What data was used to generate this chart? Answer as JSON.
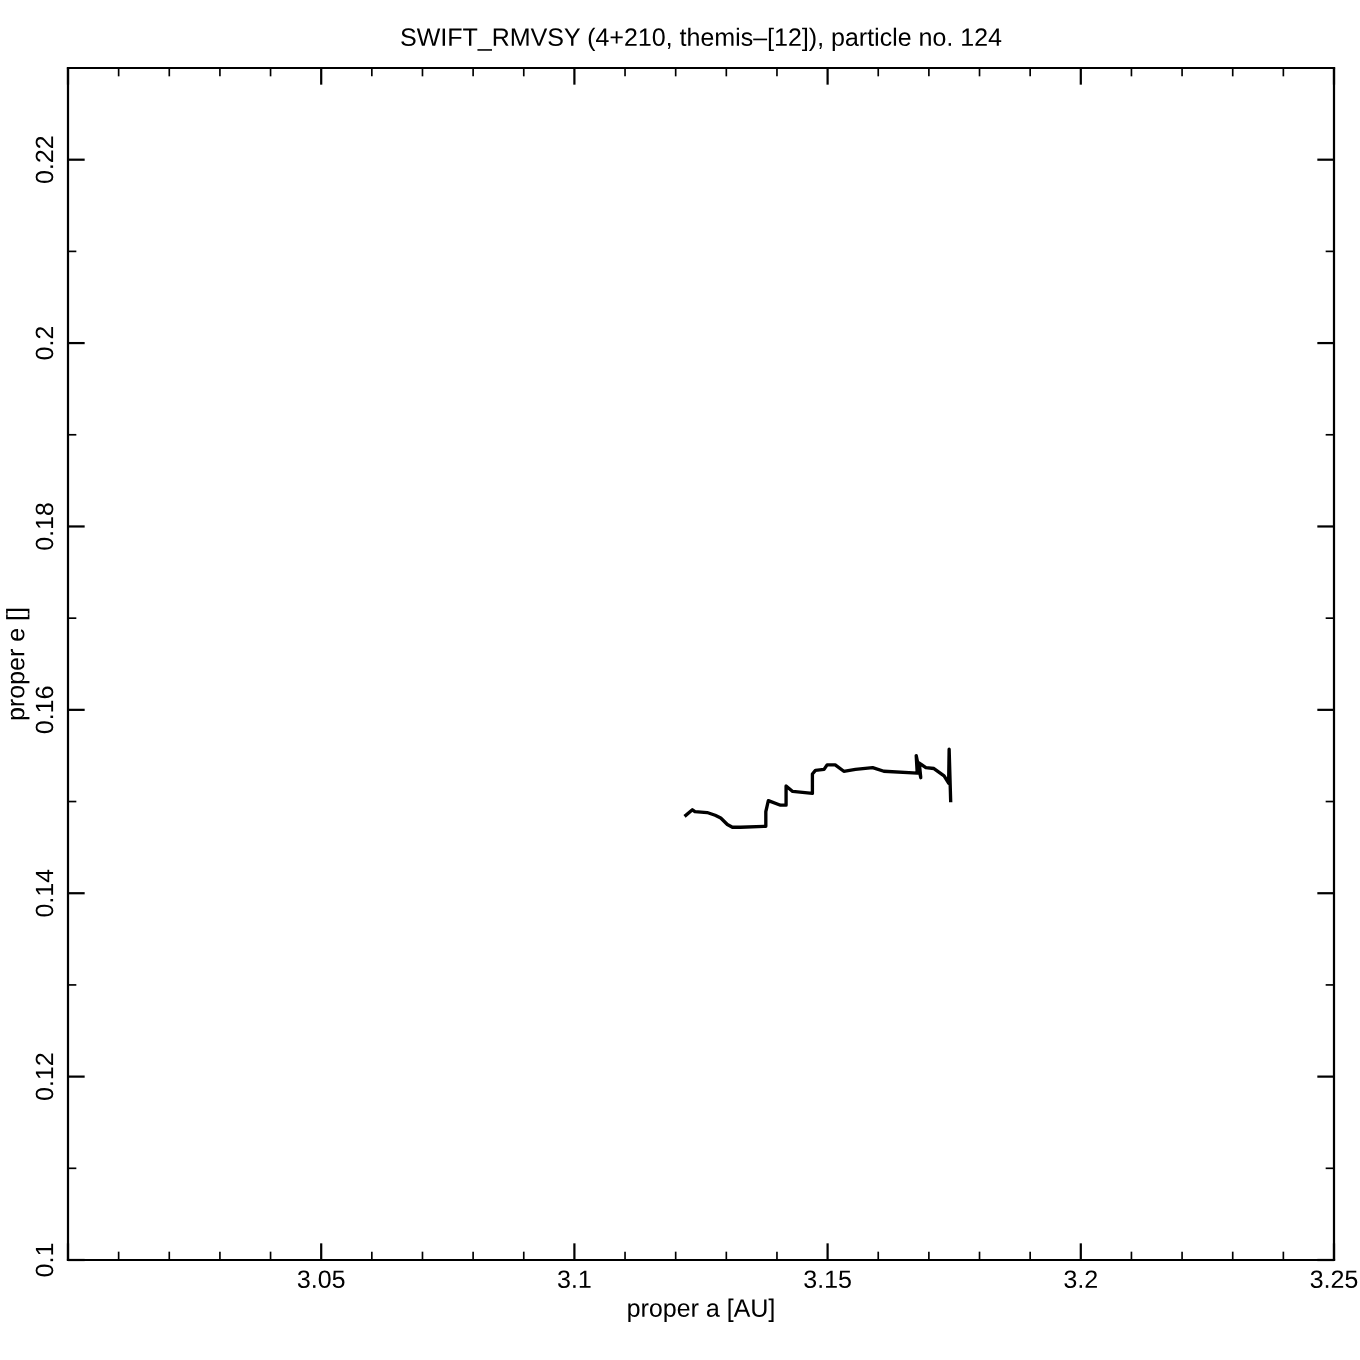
{
  "chart_data": {
    "type": "line",
    "title": "SWIFT_RMVSY (4+210, themis–[12]), particle no. 124",
    "xlabel": "proper a [AU]",
    "ylabel": "proper e []",
    "series": [
      {
        "color": "#000000",
        "x": [
          3.122,
          3.1233,
          3.1238,
          3.1262,
          3.1278,
          3.1289,
          3.1302,
          3.1312,
          3.1328,
          3.1378,
          3.1378,
          3.1383,
          3.1407,
          3.1418,
          3.1418,
          3.1431,
          3.147,
          3.147,
          3.1476,
          3.1493,
          3.1499,
          3.1515,
          3.1532,
          3.1555,
          3.1589,
          3.1611,
          3.1677,
          3.1675,
          3.1684,
          3.1681,
          3.1694,
          3.171,
          3.173,
          3.1739,
          3.174,
          3.1743
        ],
        "values": [
          0.1485,
          0.1491,
          0.1489,
          0.1488,
          0.1485,
          0.1482,
          0.1475,
          0.1472,
          0.1472,
          0.1473,
          0.1489,
          0.1501,
          0.1496,
          0.1496,
          0.1517,
          0.1511,
          0.1509,
          0.153,
          0.1534,
          0.1535,
          0.154,
          0.154,
          0.1533,
          0.1535,
          0.1537,
          0.1533,
          0.1531,
          0.155,
          0.1526,
          0.1542,
          0.1537,
          0.1536,
          0.1528,
          0.152,
          0.1557,
          0.1501
        ]
      }
    ],
    "xlim": [
      3.0,
      3.25
    ],
    "ylim": [
      0.1,
      0.23
    ],
    "xticks": [
      {
        "value": 3.0,
        "label": null
      },
      3.05,
      3.1,
      3.15,
      3.2,
      3.25
    ],
    "yticks": [
      0.1,
      0.12,
      0.14,
      0.16,
      0.18,
      0.2,
      0.22
    ],
    "grid": false,
    "marker": "none",
    "line_style": "solid",
    "legend": false
  }
}
